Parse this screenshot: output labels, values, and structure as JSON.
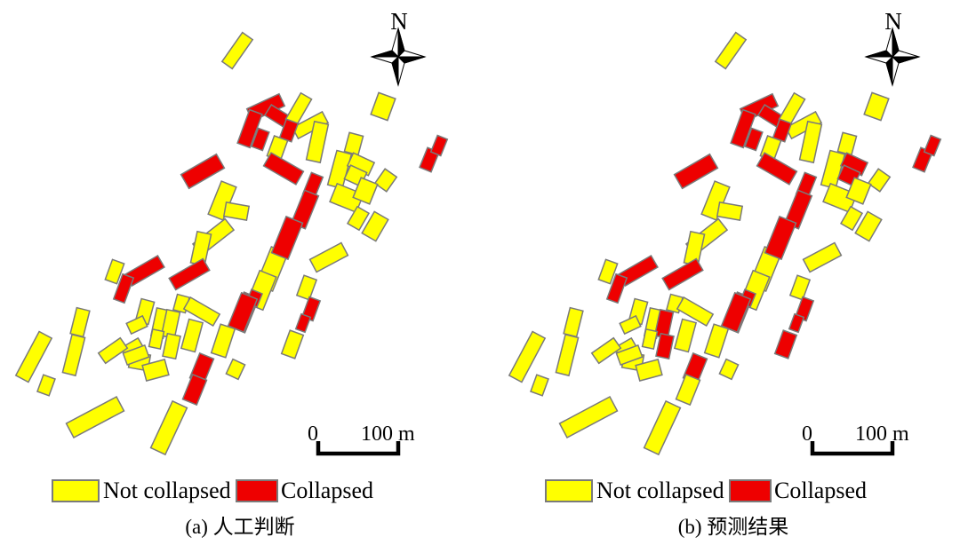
{
  "figure": {
    "type": "map-figure",
    "description_visible_text_only": true
  },
  "north_label": "N",
  "scale_bar": {
    "start": "0",
    "end": "100 m"
  },
  "legend": {
    "not_collapsed": "Not collapsed",
    "collapsed": "Collapsed"
  },
  "panels": [
    {
      "id": "a",
      "caption": "(a) 人工判断"
    },
    {
      "id": "b",
      "caption": "(b) 预测结果"
    }
  ],
  "colors": {
    "not_collapsed": "#FFFF00",
    "collapsed": "#EE0000",
    "outline": "#7a7a7a",
    "ink": "#000000"
  },
  "map_data": {
    "type": "building-footprints",
    "status_codes": {
      "n": "not_collapsed",
      "c": "collapsed"
    },
    "building_format": [
      "cx",
      "cy",
      "w",
      "h",
      "rotate_deg",
      "status_panel_a",
      "status_panel_b"
    ],
    "buildings": [
      [
        267,
        57,
        14,
        40,
        35,
        "n",
        "n"
      ],
      [
        299,
        121,
        40,
        15,
        -25,
        "c",
        "c"
      ],
      [
        281,
        145,
        15,
        40,
        20,
        "c",
        "c"
      ],
      [
        293,
        157,
        13,
        22,
        20,
        "c",
        "c"
      ],
      [
        316,
        133,
        34,
        14,
        32,
        "c",
        "c"
      ],
      [
        336,
        123,
        14,
        34,
        30,
        "n",
        "n"
      ],
      [
        349,
        141,
        38,
        14,
        -28,
        "n",
        "n"
      ],
      [
        325,
        147,
        14,
        22,
        20,
        "c",
        "c"
      ],
      [
        357,
        160,
        16,
        44,
        12,
        "n",
        "n"
      ],
      [
        431,
        120,
        20,
        26,
        20,
        "n",
        "n"
      ],
      [
        398,
        162,
        16,
        22,
        15,
        "n",
        "n"
      ],
      [
        312,
        167,
        16,
        24,
        20,
        "n",
        "n"
      ],
      [
        228,
        193,
        46,
        18,
        -30,
        "c",
        "c"
      ],
      [
        319,
        190,
        42,
        17,
        30,
        "c",
        "c"
      ],
      [
        382,
        191,
        17,
        40,
        15,
        "n",
        "n"
      ],
      [
        406,
        185,
        26,
        16,
        25,
        "n",
        "c"
      ],
      [
        400,
        198,
        20,
        17,
        25,
        "n",
        "c"
      ],
      [
        434,
        203,
        16,
        20,
        35,
        "n",
        "n"
      ],
      [
        390,
        223,
        32,
        22,
        22,
        "n",
        "n"
      ],
      [
        411,
        215,
        20,
        24,
        22,
        "n",
        "n"
      ],
      [
        250,
        226,
        18,
        40,
        22,
        "n",
        "n"
      ],
      [
        266,
        238,
        26,
        16,
        10,
        "n",
        "n"
      ],
      [
        240,
        267,
        46,
        16,
        -38,
        "n",
        "n"
      ],
      [
        226,
        280,
        16,
        36,
        12,
        "n",
        "n"
      ],
      [
        306,
        303,
        20,
        46,
        22,
        "n",
        "n"
      ],
      [
        294,
        327,
        20,
        40,
        22,
        "n",
        "n"
      ],
      [
        275,
        352,
        18,
        42,
        22,
        "c",
        "c"
      ],
      [
        352,
        209,
        14,
        26,
        22,
        "c",
        "c"
      ],
      [
        343,
        236,
        17,
        40,
        22,
        "c",
        "c"
      ],
      [
        323,
        268,
        20,
        44,
        22,
        "c",
        "c"
      ],
      [
        286,
        336,
        13,
        16,
        22,
        "c",
        "c"
      ],
      [
        273,
        352,
        19,
        40,
        22,
        "c",
        "c"
      ],
      [
        227,
        415,
        17,
        30,
        22,
        "c",
        "c"
      ],
      [
        219,
        439,
        17,
        30,
        22,
        "c",
        "n"
      ],
      [
        483,
        180,
        14,
        24,
        22,
        "c",
        "c"
      ],
      [
        494,
        164,
        12,
        20,
        22,
        "c",
        "c"
      ],
      [
        403,
        246,
        15,
        22,
        30,
        "n",
        "n"
      ],
      [
        422,
        255,
        18,
        28,
        30,
        "n",
        "n"
      ],
      [
        370,
        290,
        40,
        16,
        -28,
        "n",
        "n"
      ],
      [
        345,
        324,
        15,
        24,
        20,
        "n",
        "n"
      ],
      [
        350,
        348,
        13,
        24,
        20,
        "c",
        "c"
      ],
      [
        341,
        364,
        11,
        18,
        20,
        "c",
        "c"
      ],
      [
        329,
        388,
        16,
        28,
        20,
        "n",
        "c"
      ],
      [
        129,
        306,
        14,
        24,
        20,
        "n",
        "n"
      ],
      [
        163,
        305,
        42,
        15,
        -30,
        "c",
        "c"
      ],
      [
        139,
        325,
        13,
        30,
        20,
        "c",
        "c"
      ],
      [
        213,
        309,
        44,
        15,
        -30,
        "c",
        "c"
      ],
      [
        163,
        351,
        15,
        26,
        15,
        "n",
        "n"
      ],
      [
        154,
        366,
        20,
        13,
        -25,
        "n",
        "n"
      ],
      [
        180,
        364,
        14,
        32,
        12,
        "n",
        "n"
      ],
      [
        192,
        365,
        15,
        30,
        12,
        "n",
        "c"
      ],
      [
        204,
        342,
        14,
        18,
        15,
        "n",
        "n"
      ],
      [
        227,
        351,
        38,
        15,
        30,
        "n",
        "n"
      ],
      [
        176,
        382,
        13,
        20,
        12,
        "n",
        "n"
      ],
      [
        193,
        390,
        15,
        26,
        12,
        "n",
        "c"
      ],
      [
        216,
        378,
        16,
        34,
        15,
        "n",
        "n"
      ],
      [
        251,
        384,
        17,
        34,
        18,
        "n",
        "n"
      ],
      [
        149,
        392,
        22,
        13,
        -30,
        "n",
        "n"
      ],
      [
        157,
        407,
        22,
        18,
        10,
        "n",
        "n"
      ],
      [
        265,
        416,
        15,
        18,
        25,
        "n",
        "n"
      ],
      [
        38,
        402,
        16,
        56,
        28,
        "n",
        "n"
      ],
      [
        90,
        363,
        15,
        30,
        14,
        "n",
        "n"
      ],
      [
        83,
        400,
        15,
        44,
        14,
        "n",
        "n"
      ],
      [
        52,
        434,
        14,
        20,
        20,
        "n",
        "n"
      ],
      [
        127,
        395,
        30,
        14,
        -35,
        "n",
        "n"
      ],
      [
        153,
        400,
        26,
        14,
        -20,
        "n",
        "n"
      ],
      [
        175,
        417,
        26,
        18,
        -15,
        "n",
        "n"
      ],
      [
        107,
        470,
        64,
        18,
        -28,
        "n",
        "n"
      ],
      [
        190,
        482,
        18,
        58,
        25,
        "n",
        "n"
      ]
    ]
  }
}
